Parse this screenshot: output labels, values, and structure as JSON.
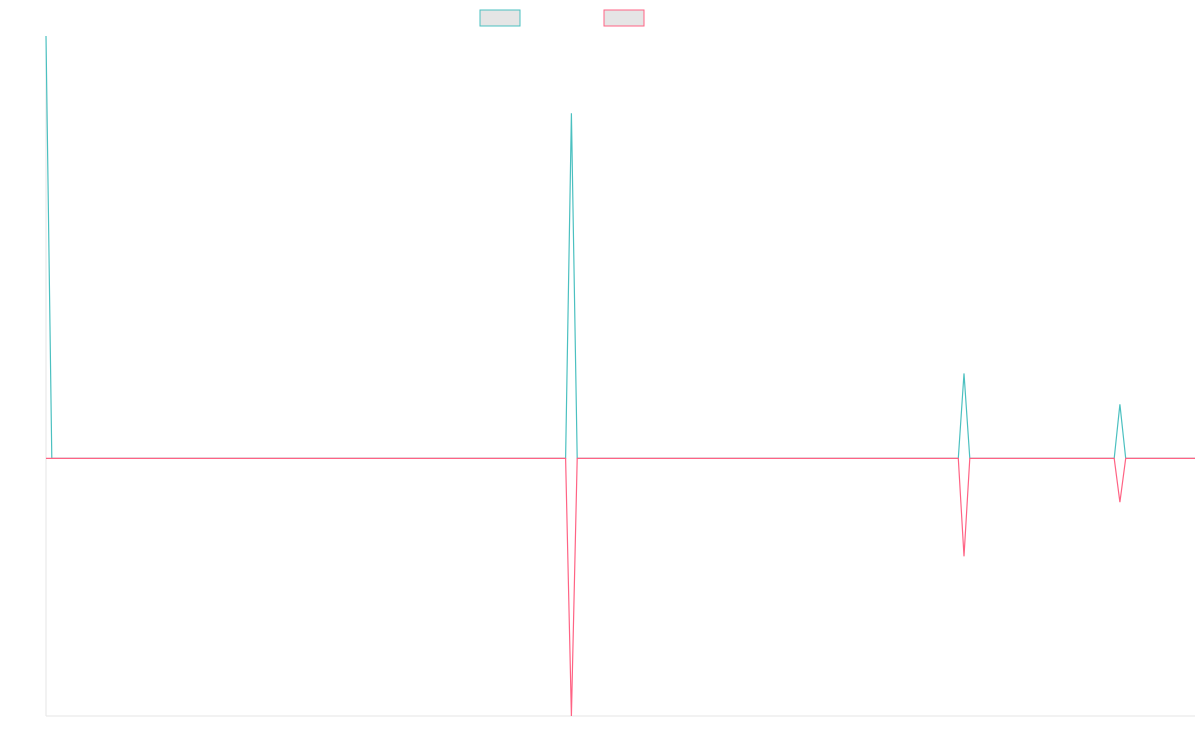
{
  "chart_data": {
    "type": "line",
    "title": "",
    "xlabel": "",
    "ylabel": "",
    "x_count": 200,
    "xlim": [
      0,
      199
    ],
    "ylim": [
      -1.0,
      1.64
    ],
    "grid": false,
    "legend_position": "top-center",
    "series": [
      {
        "color": "#4BC0C0",
        "fill": "#E5E5E5",
        "points": [
          [
            0,
            1.64
          ],
          [
            1,
            0
          ],
          [
            90,
            0
          ],
          [
            91,
            1.34
          ],
          [
            92,
            0
          ],
          [
            158,
            0
          ],
          [
            159,
            0.33
          ],
          [
            160,
            0
          ],
          [
            185,
            0
          ],
          [
            186,
            0.21
          ],
          [
            187,
            0
          ],
          [
            199,
            0
          ]
        ]
      },
      {
        "color": "#FF6384",
        "fill": "#E5E5E5",
        "points": [
          [
            0,
            0
          ],
          [
            90,
            0
          ],
          [
            91,
            -1.0
          ],
          [
            92,
            0
          ],
          [
            158,
            0
          ],
          [
            159,
            -0.38
          ],
          [
            160,
            0
          ],
          [
            185,
            0
          ],
          [
            186,
            -0.17
          ],
          [
            187,
            0
          ],
          [
            199,
            0
          ]
        ]
      }
    ]
  }
}
